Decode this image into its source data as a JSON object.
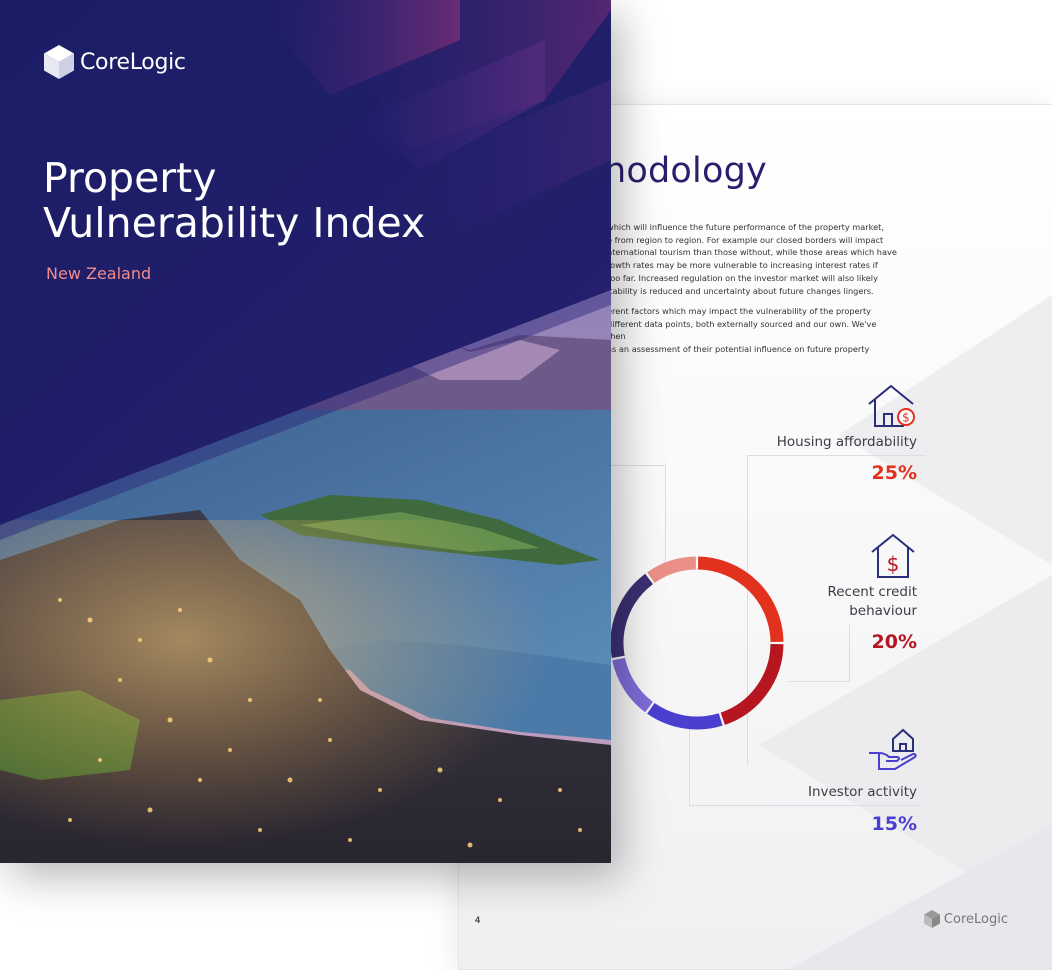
{
  "cover": {
    "brand": "CoreLogic",
    "title_line1": "Property",
    "title_line2": "Vulnerability Index",
    "subtitle": "New Zealand"
  },
  "methodology": {
    "title": "hodology",
    "paragraph1": [
      "which will influence the future performance of the property market,",
      "e from region to region.  For example our closed borders will impact",
      "nternational tourism than those without, while those areas which have",
      "rowth rates may be more vulnerable to increasing interest rates if",
      "too far. Increased regulation on the investor market will also likely",
      "itability is reduced and uncertainty about future changes lingers."
    ],
    "paragraph2": [
      "erent factors which may impact the vulnerability of the property",
      "different data points, both externally sourced and our own. We've then",
      "as an assessment of their potential influence on future property"
    ],
    "factors": [
      {
        "label_lines": [
          "Housing affordability"
        ],
        "pct": "25%",
        "color": "#e2311d",
        "icon": "house-dollar-icon"
      },
      {
        "label_lines": [
          "Recent credit",
          "behaviour"
        ],
        "pct": "20%",
        "color": "#b5161f",
        "icon": "house-dollar-sign-icon"
      },
      {
        "label_lines": [
          "Investor activity"
        ],
        "pct": "15%",
        "color": "#4a3fcf",
        "icon": "hand-house-icon"
      }
    ],
    "page_number": "4",
    "footer_brand": "CoreLogic"
  },
  "donut_segments": [
    {
      "share": 25,
      "color": "#e2311d"
    },
    {
      "share": 20,
      "color": "#b5161f"
    },
    {
      "share": 15,
      "color": "#4a3fcf"
    },
    {
      "share": 12,
      "color": "#7f6bd6"
    },
    {
      "share": 18,
      "color": "#3d2f73"
    },
    {
      "share": 10,
      "color": "#ea8f88"
    }
  ]
}
